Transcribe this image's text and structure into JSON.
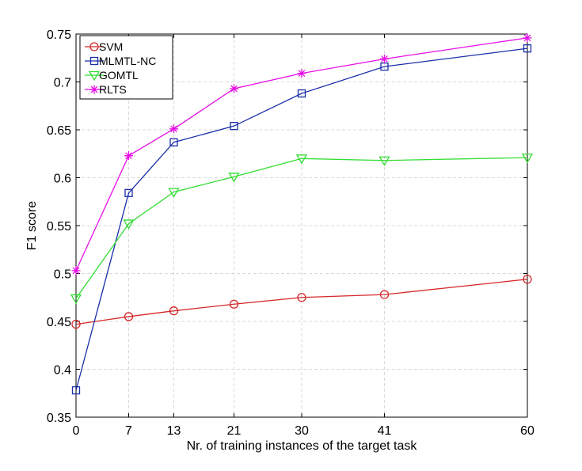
{
  "chart_data": {
    "type": "line",
    "title": "",
    "xlabel": "Nr. of training instances of the target task",
    "ylabel": "F1 score",
    "x": [
      0,
      7,
      13,
      21,
      30,
      41,
      60
    ],
    "xticks": [
      "0",
      "7",
      "13",
      "21",
      "30",
      "41",
      "60"
    ],
    "xlim": [
      0,
      60
    ],
    "ylim": [
      0.35,
      0.75
    ],
    "yticks": [
      "0.35",
      "0.4",
      "0.45",
      "0.5",
      "0.55",
      "0.6",
      "0.65",
      "0.7",
      "0.75"
    ],
    "grid": true,
    "legend_position": "top-left",
    "series": [
      {
        "name": "SVM",
        "color": "#d62728",
        "marker": "circle",
        "values": [
          0.447,
          0.455,
          0.461,
          0.468,
          0.475,
          0.478,
          0.494
        ]
      },
      {
        "name": "MLMTL-NC",
        "color": "#1a2ea8",
        "marker": "square",
        "values": [
          0.378,
          0.584,
          0.637,
          0.654,
          0.688,
          0.716,
          0.735
        ]
      },
      {
        "name": "GOMTL",
        "color": "#33dd33",
        "marker": "triangle-down",
        "values": [
          0.474,
          0.552,
          0.585,
          0.601,
          0.62,
          0.618,
          0.621
        ]
      },
      {
        "name": "RLTS",
        "color": "#e60ee6",
        "marker": "asterisk",
        "values": [
          0.503,
          0.623,
          0.651,
          0.693,
          0.709,
          0.724,
          0.746
        ]
      }
    ]
  }
}
